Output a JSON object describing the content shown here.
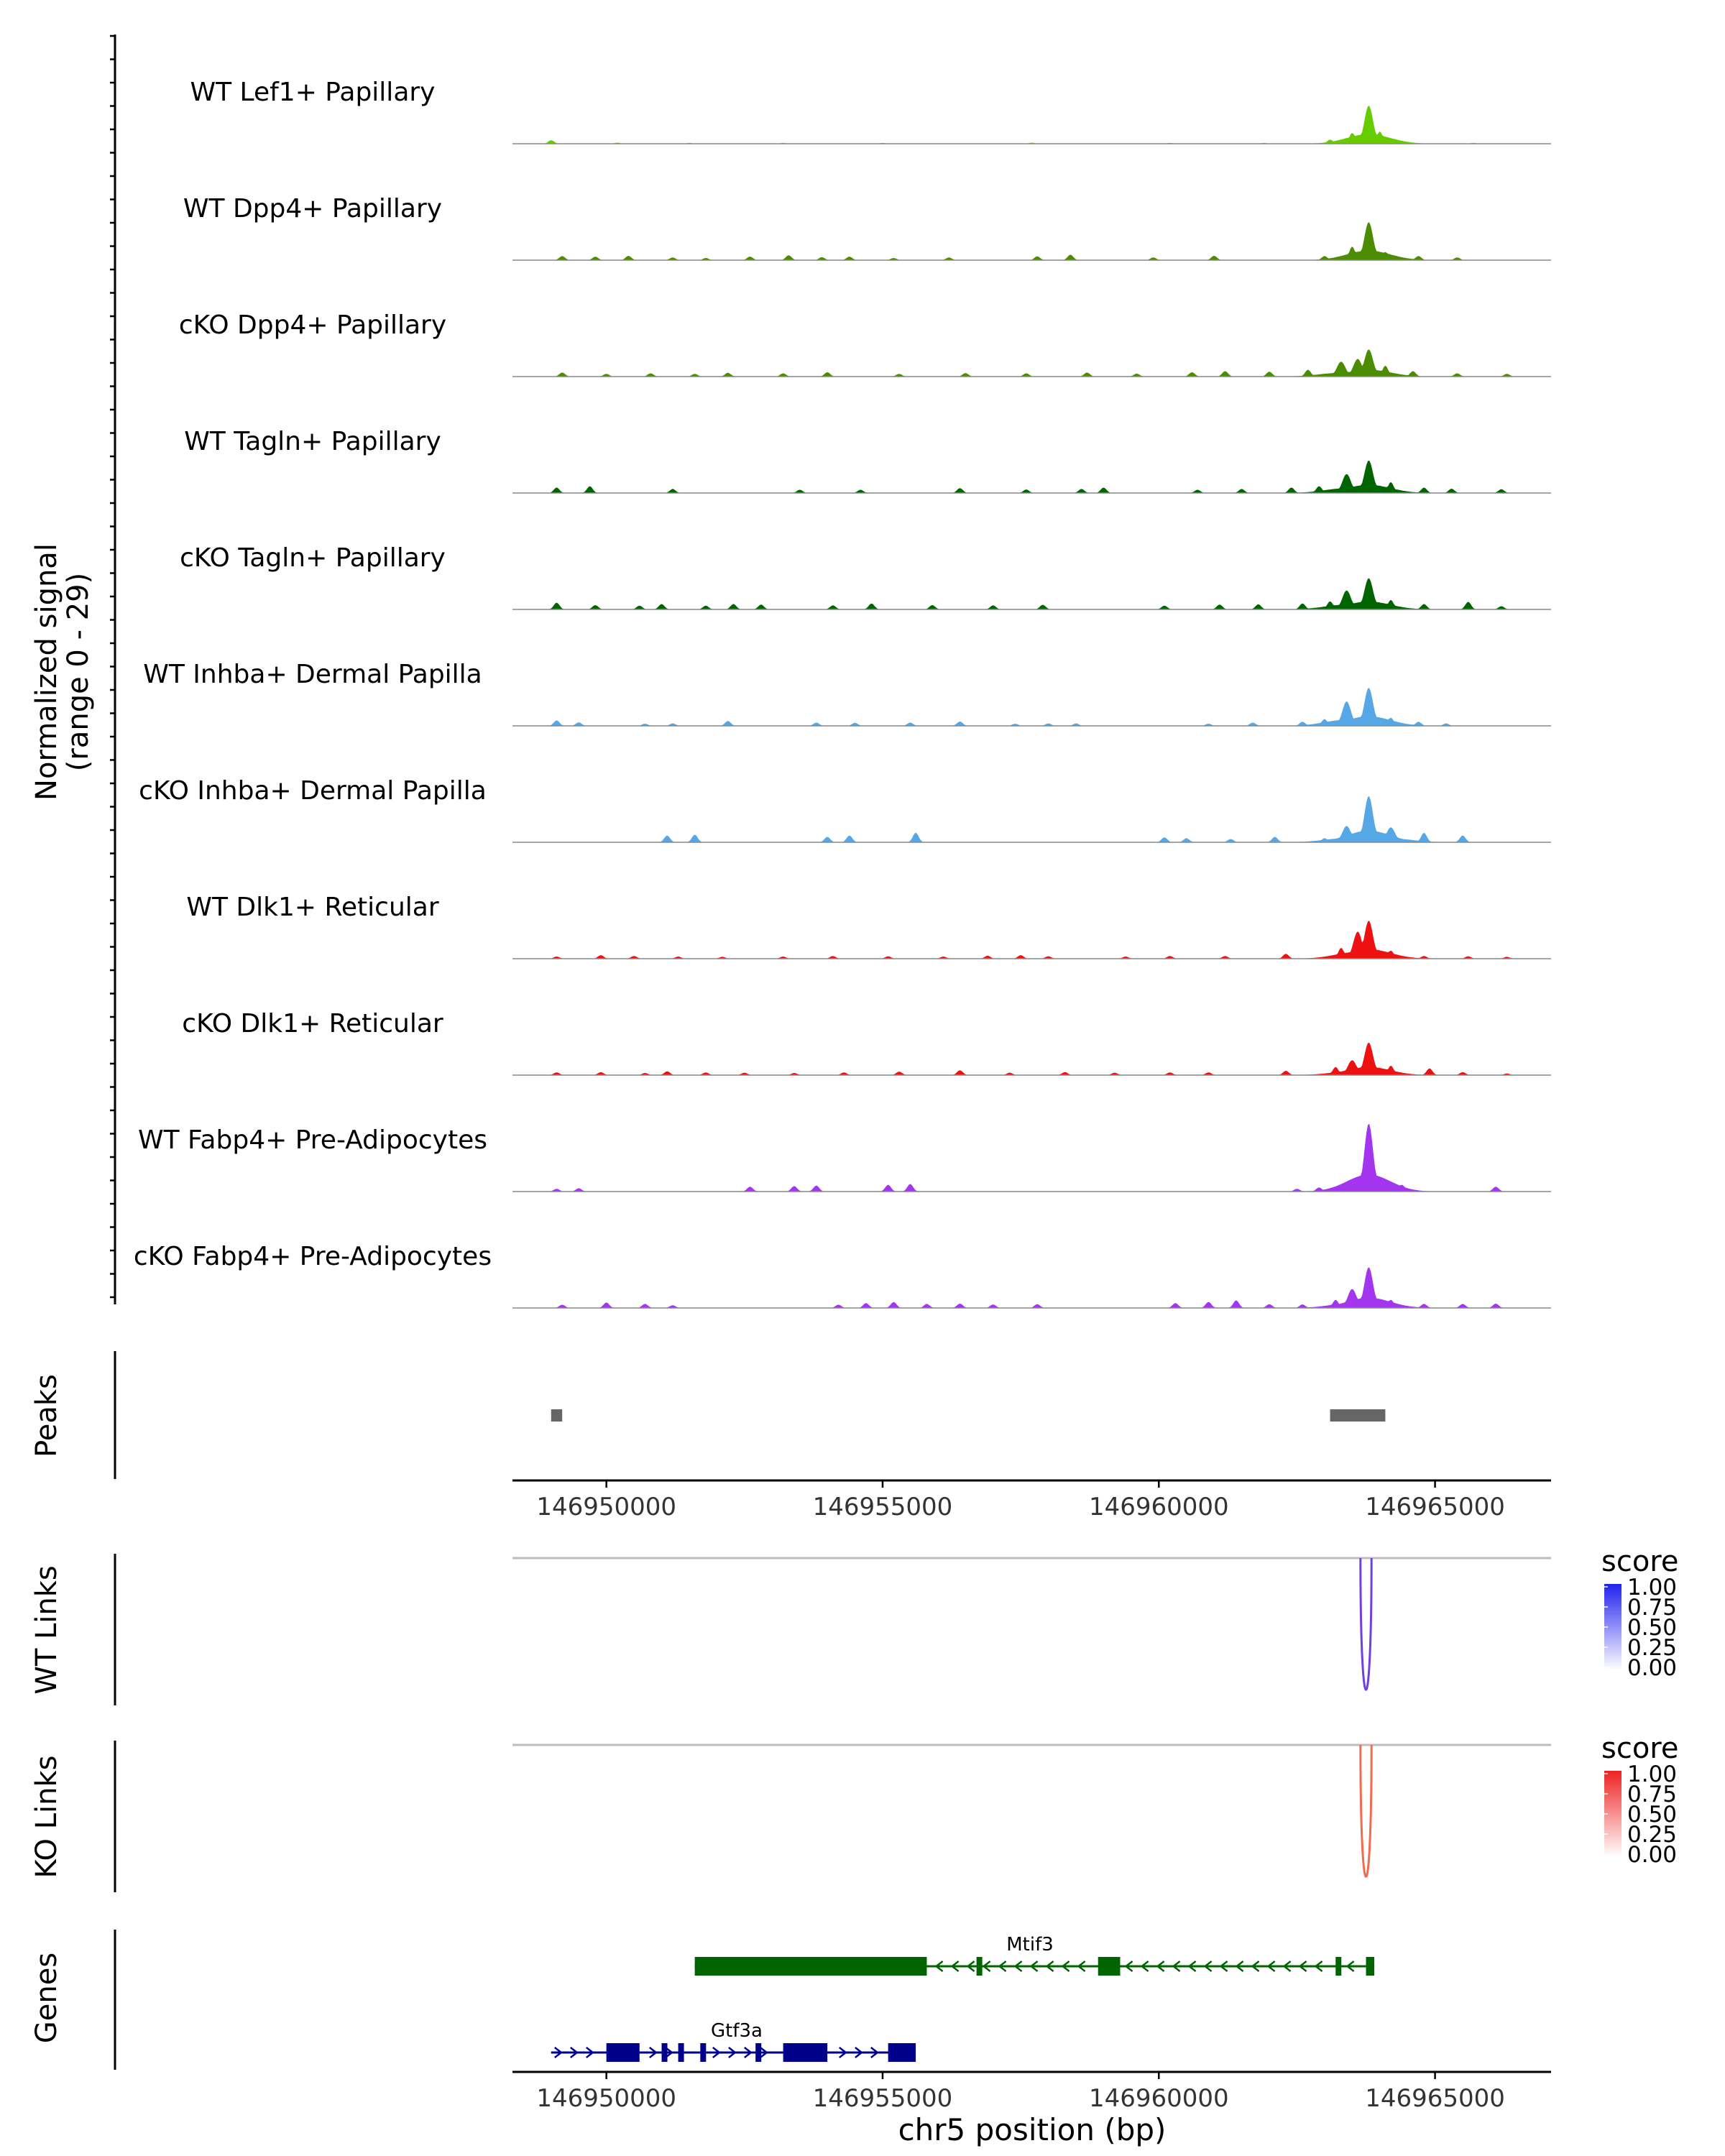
{
  "chart_data": {
    "type": "coverage-track",
    "region": {
      "chrom": "chr5",
      "start": 146948300,
      "end": 146967100
    },
    "signal_axis_label": "Normalized signal",
    "signal_range_label": "(range 0 - 29)",
    "ymax": 29,
    "tracks": [
      {
        "label": "WT Lef1+ Papillary",
        "color": "#66CC00",
        "peaks": [
          [
            146949000,
            1.3
          ],
          [
            146950200,
            0.4
          ],
          [
            146951500,
            0.3
          ],
          [
            146953200,
            0.3
          ],
          [
            146955000,
            0.3
          ],
          [
            146957700,
            0.4
          ],
          [
            146960200,
            0.3
          ],
          [
            146961900,
            0.3
          ],
          [
            146963100,
            1.5
          ],
          [
            146963500,
            4.0
          ],
          [
            146963800,
            14.0
          ],
          [
            146964000,
            4.5
          ],
          [
            146964300,
            1.2
          ],
          [
            146965700,
            0.3
          ]
        ]
      },
      {
        "label": "WT Dpp4+ Papillary",
        "color": "#4C8C00",
        "peaks": [
          [
            146949200,
            1.5
          ],
          [
            146949800,
            1.3
          ],
          [
            146950400,
            1.6
          ],
          [
            146951200,
            1.0
          ],
          [
            146951800,
            0.8
          ],
          [
            146952600,
            1.3
          ],
          [
            146953300,
            1.8
          ],
          [
            146953900,
            1.1
          ],
          [
            146954400,
            1.3
          ],
          [
            146955200,
            0.8
          ],
          [
            146956200,
            1.0
          ],
          [
            146957800,
            1.4
          ],
          [
            146958400,
            2.0
          ],
          [
            146959900,
            1.0
          ],
          [
            146961000,
            1.6
          ],
          [
            146963000,
            1.5
          ],
          [
            146963500,
            5.0
          ],
          [
            146963800,
            14.0
          ],
          [
            146964100,
            3.0
          ],
          [
            146964700,
            1.5
          ],
          [
            146965400,
            1.0
          ]
        ]
      },
      {
        "label": "cKO Dpp4+ Papillary",
        "color": "#4C8C00",
        "peaks": [
          [
            146949200,
            1.5
          ],
          [
            146950000,
            1.0
          ],
          [
            146950800,
            1.2
          ],
          [
            146951600,
            1.0
          ],
          [
            146952200,
            1.4
          ],
          [
            146953200,
            1.2
          ],
          [
            146954000,
            1.6
          ],
          [
            146955300,
            1.0
          ],
          [
            146956500,
            1.3
          ],
          [
            146957600,
            1.2
          ],
          [
            146958700,
            1.5
          ],
          [
            146959600,
            1.1
          ],
          [
            146960600,
            1.6
          ],
          [
            146961200,
            2.0
          ],
          [
            146962000,
            1.8
          ],
          [
            146962700,
            2.5
          ],
          [
            146963300,
            5.5
          ],
          [
            146963600,
            6.5
          ],
          [
            146963800,
            10.0
          ],
          [
            146964100,
            4.0
          ],
          [
            146964600,
            2.0
          ],
          [
            146965400,
            1.2
          ],
          [
            146966300,
            1.0
          ]
        ]
      },
      {
        "label": "WT Tagln+ Papillary",
        "color": "#006400",
        "peaks": [
          [
            146949100,
            2.0
          ],
          [
            146949700,
            2.5
          ],
          [
            146951200,
            1.5
          ],
          [
            146953500,
            1.2
          ],
          [
            146954600,
            1.2
          ],
          [
            146956400,
            1.8
          ],
          [
            146957600,
            1.3
          ],
          [
            146958600,
            1.5
          ],
          [
            146959000,
            2.0
          ],
          [
            146960700,
            1.2
          ],
          [
            146961500,
            1.5
          ],
          [
            146962400,
            2.0
          ],
          [
            146962900,
            2.5
          ],
          [
            146963400,
            7.0
          ],
          [
            146963800,
            12.0
          ],
          [
            146964200,
            4.0
          ],
          [
            146964800,
            2.0
          ],
          [
            146965300,
            1.6
          ],
          [
            146966200,
            1.4
          ]
        ]
      },
      {
        "label": "cKO Tagln+ Papillary",
        "color": "#006400",
        "peaks": [
          [
            146949100,
            2.5
          ],
          [
            146949800,
            1.6
          ],
          [
            146950600,
            1.4
          ],
          [
            146951000,
            2.0
          ],
          [
            146951800,
            1.4
          ],
          [
            146952300,
            2.0
          ],
          [
            146952800,
            1.8
          ],
          [
            146954100,
            1.5
          ],
          [
            146954800,
            2.2
          ],
          [
            146955900,
            1.6
          ],
          [
            146957000,
            1.5
          ],
          [
            146957900,
            1.7
          ],
          [
            146960100,
            1.4
          ],
          [
            146961100,
            1.8
          ],
          [
            146961800,
            1.9
          ],
          [
            146962600,
            2.2
          ],
          [
            146963100,
            3.0
          ],
          [
            146963400,
            7.0
          ],
          [
            146963800,
            11.5
          ],
          [
            146964200,
            3.5
          ],
          [
            146964800,
            2.0
          ],
          [
            146965600,
            2.8
          ],
          [
            146966200,
            1.2
          ]
        ]
      },
      {
        "label": "WT Inhba+ Dermal Papilla",
        "color": "#56A7E6",
        "peaks": [
          [
            146949100,
            2.0
          ],
          [
            146949500,
            1.3
          ],
          [
            146950700,
            0.8
          ],
          [
            146951200,
            0.9
          ],
          [
            146952200,
            1.8
          ],
          [
            146953800,
            1.2
          ],
          [
            146954500,
            1.1
          ],
          [
            146955500,
            1.2
          ],
          [
            146956400,
            1.6
          ],
          [
            146957400,
            0.8
          ],
          [
            146958000,
            0.9
          ],
          [
            146958500,
            0.9
          ],
          [
            146960900,
            0.8
          ],
          [
            146961700,
            1.2
          ],
          [
            146962600,
            1.5
          ],
          [
            146963000,
            2.5
          ],
          [
            146963400,
            9.0
          ],
          [
            146963800,
            14.0
          ],
          [
            146964200,
            3.0
          ],
          [
            146964700,
            1.5
          ],
          [
            146965200,
            0.9
          ]
        ]
      },
      {
        "label": "cKO Inhba+ Dermal Papilla",
        "color": "#56A7E6",
        "peaks": [
          [
            146951100,
            2.5
          ],
          [
            146951600,
            2.8
          ],
          [
            146954000,
            2.0
          ],
          [
            146954400,
            2.5
          ],
          [
            146955600,
            3.5
          ],
          [
            146960100,
            1.8
          ],
          [
            146960500,
            1.5
          ],
          [
            146961300,
            1.2
          ],
          [
            146962100,
            2.0
          ],
          [
            146963000,
            1.5
          ],
          [
            146963400,
            6.0
          ],
          [
            146963800,
            17.0
          ],
          [
            146964200,
            5.5
          ],
          [
            146964800,
            3.5
          ],
          [
            146965500,
            2.5
          ]
        ]
      },
      {
        "label": "WT Dlk1+ Reticular",
        "color": "#EE1111",
        "peaks": [
          [
            146949100,
            0.8
          ],
          [
            146949900,
            1.3
          ],
          [
            146950500,
            1.0
          ],
          [
            146951300,
            0.8
          ],
          [
            146952100,
            0.7
          ],
          [
            146953200,
            0.8
          ],
          [
            146954100,
            1.0
          ],
          [
            146955100,
            0.9
          ],
          [
            146956100,
            0.8
          ],
          [
            146956900,
            1.1
          ],
          [
            146957500,
            1.3
          ],
          [
            146958000,
            0.9
          ],
          [
            146959400,
            0.8
          ],
          [
            146960200,
            1.0
          ],
          [
            146961200,
            1.0
          ],
          [
            146962300,
            1.8
          ],
          [
            146963300,
            4.0
          ],
          [
            146963600,
            10.0
          ],
          [
            146963800,
            14.0
          ],
          [
            146964200,
            3.0
          ],
          [
            146964800,
            1.0
          ],
          [
            146965600,
            0.9
          ],
          [
            146966300,
            0.7
          ]
        ]
      },
      {
        "label": "cKO Dlk1+ Reticular",
        "color": "#EE1111",
        "peaks": [
          [
            146949100,
            1.0
          ],
          [
            146949900,
            1.1
          ],
          [
            146950700,
            0.8
          ],
          [
            146951100,
            1.4
          ],
          [
            146951800,
            1.0
          ],
          [
            146952500,
            0.9
          ],
          [
            146953400,
            0.8
          ],
          [
            146954300,
            1.0
          ],
          [
            146955300,
            1.3
          ],
          [
            146956400,
            1.8
          ],
          [
            146957300,
            0.9
          ],
          [
            146958300,
            1.1
          ],
          [
            146959200,
            0.9
          ],
          [
            146960200,
            1.0
          ],
          [
            146960900,
            1.0
          ],
          [
            146962300,
            1.6
          ],
          [
            146963200,
            3.0
          ],
          [
            146963500,
            5.5
          ],
          [
            146963800,
            12.0
          ],
          [
            146964200,
            3.5
          ],
          [
            146964900,
            2.5
          ],
          [
            146965500,
            1.1
          ],
          [
            146966300,
            0.6
          ]
        ]
      },
      {
        "label": "WT Fabp4+ Pre-Adipocytes",
        "color": "#A335EE",
        "peaks": [
          [
            146949100,
            1.0
          ],
          [
            146949500,
            1.2
          ],
          [
            146952600,
            1.8
          ],
          [
            146953400,
            2.0
          ],
          [
            146953800,
            2.2
          ],
          [
            146955100,
            2.5
          ],
          [
            146955500,
            2.8
          ],
          [
            146962500,
            1.0
          ],
          [
            146962900,
            1.5
          ],
          [
            146963200,
            1.0
          ],
          [
            146963500,
            4.5
          ],
          [
            146963800,
            25.0
          ],
          [
            146964100,
            4.0
          ],
          [
            146964400,
            2.5
          ],
          [
            146966100,
            1.8
          ]
        ]
      },
      {
        "label": "cKO Fabp4+ Pre-Adipocytes",
        "color": "#A335EE",
        "peaks": [
          [
            146949200,
            1.2
          ],
          [
            146950000,
            2.0
          ],
          [
            146950700,
            1.5
          ],
          [
            146951200,
            1.0
          ],
          [
            146954200,
            1.2
          ],
          [
            146954700,
            1.8
          ],
          [
            146955200,
            2.2
          ],
          [
            146955800,
            1.5
          ],
          [
            146956400,
            1.6
          ],
          [
            146957000,
            1.3
          ],
          [
            146957800,
            1.4
          ],
          [
            146960300,
            1.8
          ],
          [
            146960900,
            2.2
          ],
          [
            146961400,
            2.8
          ],
          [
            146962000,
            1.4
          ],
          [
            146962600,
            1.3
          ],
          [
            146963200,
            3.0
          ],
          [
            146963500,
            7.0
          ],
          [
            146963800,
            15.0
          ],
          [
            146964200,
            3.0
          ],
          [
            146964800,
            1.5
          ],
          [
            146965500,
            1.5
          ],
          [
            146966100,
            1.6
          ]
        ]
      }
    ],
    "peaks_track": {
      "label": "Peaks",
      "color": "#666666",
      "regions": [
        [
          146949000,
          146949200
        ],
        [
          146963100,
          146964100
        ]
      ]
    },
    "x_axis": {
      "ticks": [
        146950000,
        146955000,
        146960000,
        146965000
      ],
      "tick_labels": [
        "146950000",
        "146955000",
        "146960000",
        "146965000"
      ],
      "title": "chr5 position (bp)"
    },
    "links": [
      {
        "label": "WT Links",
        "color": "#7040E0",
        "arcs": [
          {
            "start": 146963650,
            "end": 146963850,
            "score": 0.75
          }
        ],
        "legend": {
          "title": "score",
          "ticks": [
            "1.00",
            "0.75",
            "0.50",
            "0.25",
            "0.00"
          ],
          "high": "#2222EE",
          "low": "#FFFFFF"
        }
      },
      {
        "label": "KO Links",
        "color": "#F26A50",
        "arcs": [
          {
            "start": 146963650,
            "end": 146963850,
            "score": 0.6
          }
        ],
        "legend": {
          "title": "score",
          "ticks": [
            "1.00",
            "0.75",
            "0.50",
            "0.25",
            "0.00"
          ],
          "high": "#EE2222",
          "low": "#FFFFFF"
        }
      }
    ],
    "genes": {
      "label": "Genes",
      "items": [
        {
          "name": "Mtif3",
          "color": "#006400",
          "strand": "-",
          "start": 146951600,
          "end": 146963900,
          "exons": [
            [
              146951600,
              146955800
            ],
            [
              146956700,
              146956800
            ],
            [
              146958900,
              146959300
            ],
            [
              146963200,
              146963300
            ],
            [
              146963750,
              146963900
            ]
          ]
        },
        {
          "name": "Gtf3a",
          "color": "#00008B",
          "strand": "+",
          "start": 146949000,
          "end": 146955600,
          "exons": [
            [
              146950000,
              146950600
            ],
            [
              146951000,
              146951050
            ],
            [
              146951300,
              146951350
            ],
            [
              146951700,
              146951750
            ],
            [
              146952700,
              146952750
            ],
            [
              146953200,
              146954000
            ],
            [
              146955100,
              146955600
            ]
          ]
        }
      ]
    }
  }
}
